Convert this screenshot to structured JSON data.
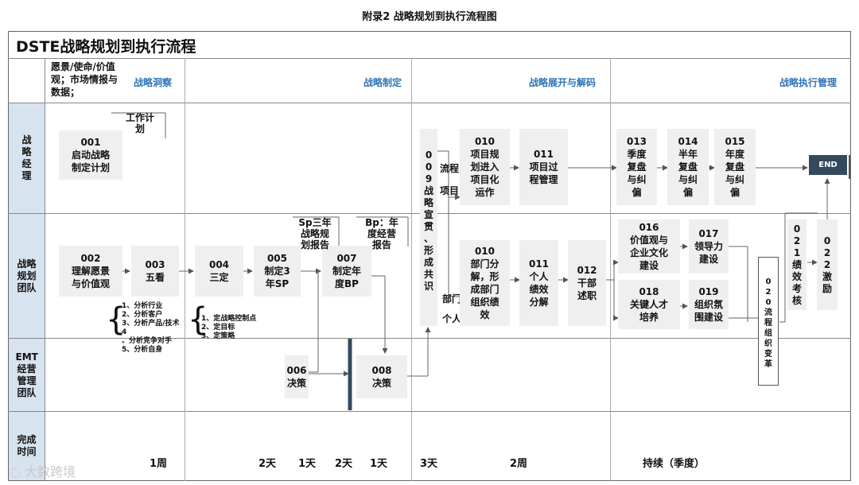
{
  "caption": "附录2 战略规划到执行流程图",
  "title": "DSTE战略规划到执行流程",
  "inputs_label": "愿景/使命/价值观；市场情报与数据；",
  "phases": [
    "战略洞察",
    "战略制定",
    "战略展开与解码",
    "战略执行管理"
  ],
  "rows": [
    "战略经理",
    "战略规划团队",
    "EMT经营管理团队",
    "完成时间"
  ],
  "boxes": {
    "b001": "001\n启动战略\n制定计划",
    "b002": "002\n理解愿景\n与价值观",
    "b003": "003\n五看",
    "b004": "004\n三定",
    "b005": "005\n制定3\n年SP",
    "b006": "006\n决策",
    "b007": "007\n制定年\n度BP",
    "b008": "008\n决策",
    "b009": "0\n0\n9\n战\n略\n宣\n贯\n、\n形\n成\n共\n识",
    "b010a": "010\n项目规\n划进入\n项目化\n运作",
    "b011a": "011\n项目过\n程管理",
    "b010b": "010\n部门分\n解，形\n成部门\n组织绩\n效",
    "b011b": "011\n个人\n绩效\n分解",
    "b012": "012\n干部\n述职",
    "b013": "013\n季度\n复盘\n与纠\n偏",
    "b014": "014\n半年\n复盘\n与纠\n偏",
    "b015": "015\n年度\n复盘\n与纠\n偏",
    "b016": "016\n价值观与\n企业文化\n建设",
    "b017": "017\n领导力\n建设",
    "b018": "018\n关键人才\n培养",
    "b019": "019\n组织氛\n围建设",
    "b020": "0\n2\n0\n流\n程\n组\n织\n变\n革",
    "b021": "0\n2\n1\n绩\n效\n考\n核",
    "b022": "0\n2\n2\n激\n励"
  },
  "end_label": "END",
  "notes": {
    "work_plan": "工作计\n划",
    "sp_report": "Sp三年\n战略规\n划报告",
    "bp_report": "Bp：年\n度经营\n报告",
    "flow_project": "流程\n\n项目",
    "dept": "部门",
    "person": "个人"
  },
  "five_looks": "1、分析行业\n2、分析客户\n3、分析产品/技术\n4\n、分析竞争对手\n5、分析自身",
  "three_settings": "1、定战略控制点\n2、定目标\n3、定策略",
  "times": [
    "1周",
    "2天",
    "1天",
    "2天",
    "1天",
    "3天",
    "2周",
    "持续（季度）"
  ],
  "watermark": "大数跨境"
}
